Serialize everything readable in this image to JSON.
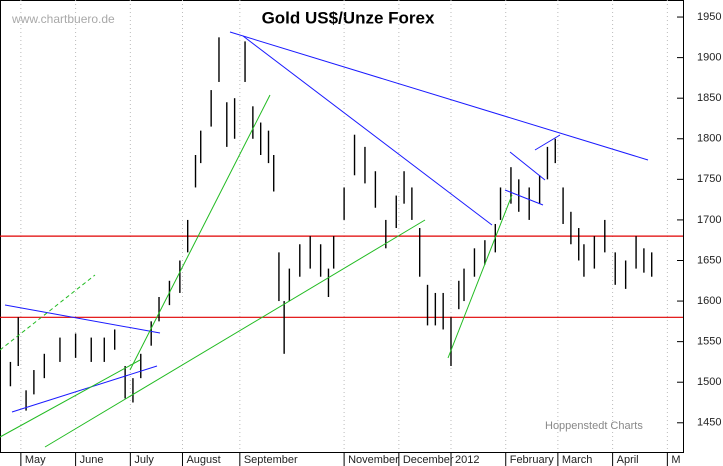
{
  "chart_data": {
    "type": "hilo",
    "title": "Gold US$/Unze Forex",
    "watermark": "www.chartbuero.de",
    "credit": "Hoppenstedt Charts",
    "color": "#000000",
    "xlim": [
      0,
      262
    ],
    "ylim": [
      1414,
      1971
    ],
    "yticks": [
      1450,
      1500,
      1550,
      1600,
      1650,
      1700,
      1750,
      1800,
      1850,
      1900,
      1950
    ],
    "xticks": [
      {
        "value": 8,
        "label": "May"
      },
      {
        "value": 29,
        "label": "June"
      },
      {
        "value": 50,
        "label": "July"
      },
      {
        "value": 70,
        "label": "August"
      },
      {
        "value": 92,
        "label": "September"
      },
      {
        "value": 132,
        "label": "November"
      },
      {
        "value": 153,
        "label": "December"
      },
      {
        "value": 173,
        "label": "2012"
      },
      {
        "value": 194,
        "label": "February"
      },
      {
        "value": 214,
        "label": "March"
      },
      {
        "value": 235,
        "label": "April"
      },
      {
        "value": 256,
        "label": "M"
      }
    ],
    "hlines": [
      {
        "value": 1680,
        "color": "#e00000"
      },
      {
        "value": 1580,
        "color": "#e00000"
      }
    ],
    "x": [
      0,
      4,
      7,
      10,
      13,
      17,
      23,
      29,
      35,
      40,
      44,
      48,
      51,
      54,
      58,
      61,
      65,
      69,
      72,
      75,
      77,
      81,
      84,
      87,
      90,
      94,
      97,
      100,
      103,
      105,
      107,
      109,
      111,
      115,
      119,
      123,
      126,
      128,
      132,
      136,
      140,
      144,
      148,
      152,
      155,
      158,
      161,
      164,
      167,
      170,
      173,
      176,
      178,
      182,
      186,
      190,
      192,
      196,
      199,
      203,
      207,
      210,
      213,
      216,
      219,
      222,
      224,
      228,
      232,
      236,
      240,
      244,
      247,
      250
    ],
    "high": [
      1512,
      1525,
      1580,
      1490,
      1515,
      1535,
      1555,
      1560,
      1555,
      1555,
      1565,
      1520,
      1505,
      1535,
      1575,
      1605,
      1625,
      1650,
      1700,
      1780,
      1810,
      1860,
      1925,
      1845,
      1850,
      1920,
      1840,
      1820,
      1810,
      1780,
      1660,
      1600,
      1640,
      1670,
      1680,
      1670,
      1640,
      1680,
      1740,
      1805,
      1790,
      1760,
      1700,
      1730,
      1760,
      1740,
      1690,
      1620,
      1610,
      1610,
      1580,
      1625,
      1640,
      1665,
      1675,
      1695,
      1740,
      1765,
      1750,
      1740,
      1755,
      1790,
      1800,
      1740,
      1710,
      1690,
      1670,
      1680,
      1700,
      1660,
      1650,
      1680,
      1665,
      1660
    ],
    "low": [
      1488,
      1495,
      1520,
      1465,
      1485,
      1505,
      1525,
      1530,
      1525,
      1525,
      1540,
      1480,
      1475,
      1505,
      1545,
      1575,
      1595,
      1610,
      1660,
      1740,
      1770,
      1815,
      1870,
      1790,
      1800,
      1870,
      1800,
      1780,
      1770,
      1735,
      1600,
      1535,
      1600,
      1630,
      1640,
      1630,
      1605,
      1640,
      1700,
      1755,
      1745,
      1715,
      1665,
      1690,
      1720,
      1700,
      1630,
      1570,
      1570,
      1565,
      1520,
      1590,
      1600,
      1630,
      1645,
      1660,
      1700,
      1720,
      1710,
      1700,
      1720,
      1750,
      1770,
      1695,
      1670,
      1650,
      1630,
      1640,
      1660,
      1620,
      1615,
      1640,
      1635,
      1630
    ]
  }
}
